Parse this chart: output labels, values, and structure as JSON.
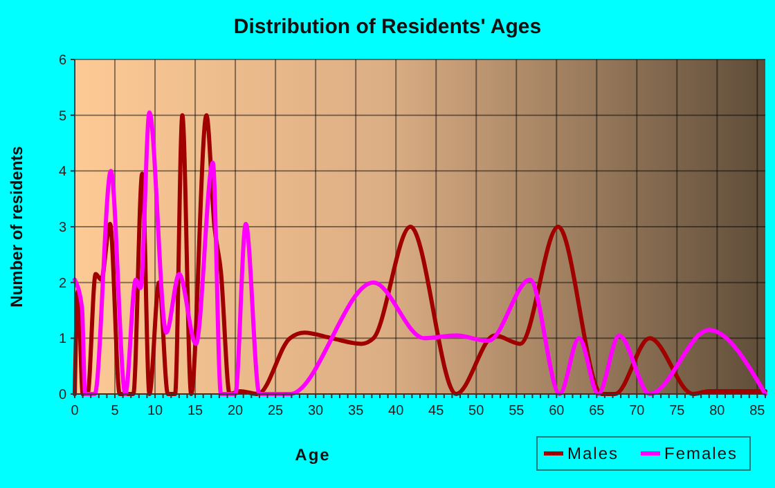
{
  "chart_data": {
    "type": "line",
    "title": "Distribution of Residents' Ages",
    "xlabel": "Age",
    "ylabel": "Number of residents",
    "xlim": [
      0,
      86
    ],
    "xticks": [
      0,
      5,
      10,
      15,
      20,
      25,
      30,
      35,
      40,
      45,
      50,
      55,
      60,
      65,
      70,
      75,
      80,
      85
    ],
    "ylim": [
      0,
      6
    ],
    "yticks": [
      0,
      1,
      2,
      3,
      4,
      5,
      6
    ],
    "grid": true,
    "legend": "bottom right",
    "line_style": "solid",
    "marker": "none",
    "series": [
      {
        "name": "Males",
        "color": "#a00000",
        "x": [
          0,
          0.4,
          1,
          1.6,
          2.6,
          3.3,
          4.4,
          5.6,
          7.3,
          8.4,
          9.3,
          10.5,
          11.6,
          12.5,
          13.4,
          14.5,
          16.4,
          17.4,
          18.2,
          19.3,
          20.6,
          22.8,
          26.8,
          28.6,
          32,
          35.7,
          37.2,
          41.8,
          47.5,
          52.3,
          55.5,
          60.2,
          65.6,
          67.3,
          71.6,
          77,
          79,
          86
        ],
        "values": [
          0,
          1.85,
          0,
          0,
          2.15,
          2.05,
          3.05,
          0,
          0,
          3.95,
          0,
          2,
          0,
          0,
          5,
          0,
          5,
          3,
          2.2,
          0,
          0.05,
          0,
          1,
          1.1,
          1,
          0.9,
          1,
          3,
          0,
          1.05,
          0.9,
          3,
          0,
          0,
          1,
          0,
          0.05,
          0.05
        ]
      },
      {
        "name": "Females",
        "color": "#ff00ff",
        "x": [
          0,
          0.9,
          1.3,
          2.5,
          4.5,
          6.3,
          7.6,
          8.2,
          9.3,
          11.4,
          13,
          15.1,
          17.2,
          18.2,
          20,
          21.3,
          23,
          26.8,
          37.2,
          43.5,
          47.5,
          51.5,
          56.7,
          60.4,
          62.8,
          65.2,
          67.8,
          71.6,
          79,
          86
        ],
        "values": [
          2.05,
          1.55,
          0,
          0,
          4,
          0,
          2.05,
          1.9,
          5.05,
          1.1,
          2.15,
          0.9,
          4.15,
          0,
          0,
          3.05,
          0,
          0,
          2,
          1,
          1.05,
          0.95,
          2.05,
          0,
          1,
          0,
          1.05,
          0,
          1.15,
          0
        ]
      }
    ]
  }
}
